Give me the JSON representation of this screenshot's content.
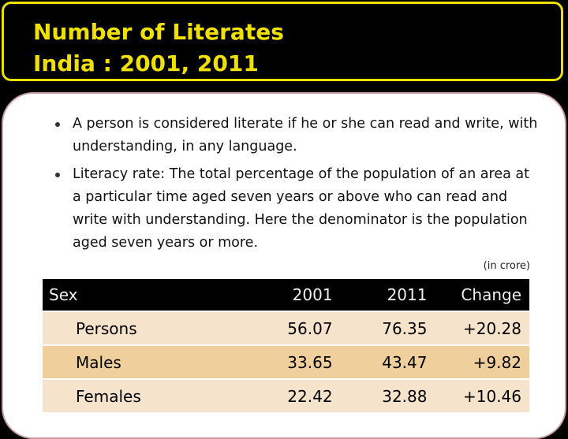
{
  "title": {
    "line1": "Number of Literates",
    "line2": "India : 2001, 2011"
  },
  "bullets": [
    "A person is considered literate if he or she can read and write, with  understanding, in any language.",
    "Literacy rate: The total percentage of the population of an area at a particular time aged seven years or above who can read and write with understanding. Here the denominator is the population aged seven years or more."
  ],
  "unit_note": "(in crore)",
  "table": {
    "headers": [
      "Sex",
      "2001",
      "2011",
      "Change"
    ],
    "rows": [
      [
        "Persons",
        "56.07",
        "76.35",
        "+20.28"
      ],
      [
        "Males",
        "33.65",
        "43.47",
        "+9.82"
      ],
      [
        "Females",
        "22.42",
        "32.88",
        "+10.46"
      ]
    ]
  },
  "colors": {
    "title_text": "#f0e000",
    "title_border": "#e8e000",
    "row_light": "#f6e3cb",
    "row_dark": "#efcf9c",
    "header_bg": "#000000"
  }
}
